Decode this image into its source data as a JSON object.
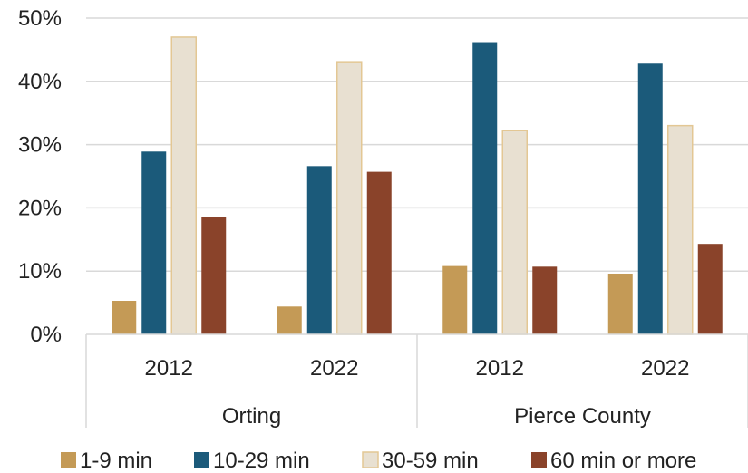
{
  "chart_data": {
    "type": "bar",
    "groups": [
      {
        "label": "Orting",
        "categories": [
          "2012",
          "2022"
        ]
      },
      {
        "label": "Pierce County",
        "categories": [
          "2012",
          "2022"
        ]
      }
    ],
    "series": [
      {
        "name": "1-9 min",
        "color": "#C49A56",
        "values": [
          5.3,
          4.4,
          10.8,
          9.6
        ]
      },
      {
        "name": "10-29 min",
        "color": "#1B5A7A",
        "values": [
          28.9,
          26.6,
          46.2,
          42.8
        ]
      },
      {
        "name": "30-59 min",
        "color": "#E8E0D1",
        "stroke": "#E3C794",
        "values": [
          47.0,
          43.1,
          32.2,
          33.0
        ]
      },
      {
        "name": "60 min or more",
        "color": "#8A432A",
        "values": [
          18.6,
          25.7,
          10.7,
          14.3
        ]
      }
    ],
    "yticks": [
      "0%",
      "10%",
      "20%",
      "30%",
      "40%",
      "50%"
    ],
    "ylim": [
      0,
      50
    ],
    "grid": true,
    "legend_position": "bottom"
  }
}
